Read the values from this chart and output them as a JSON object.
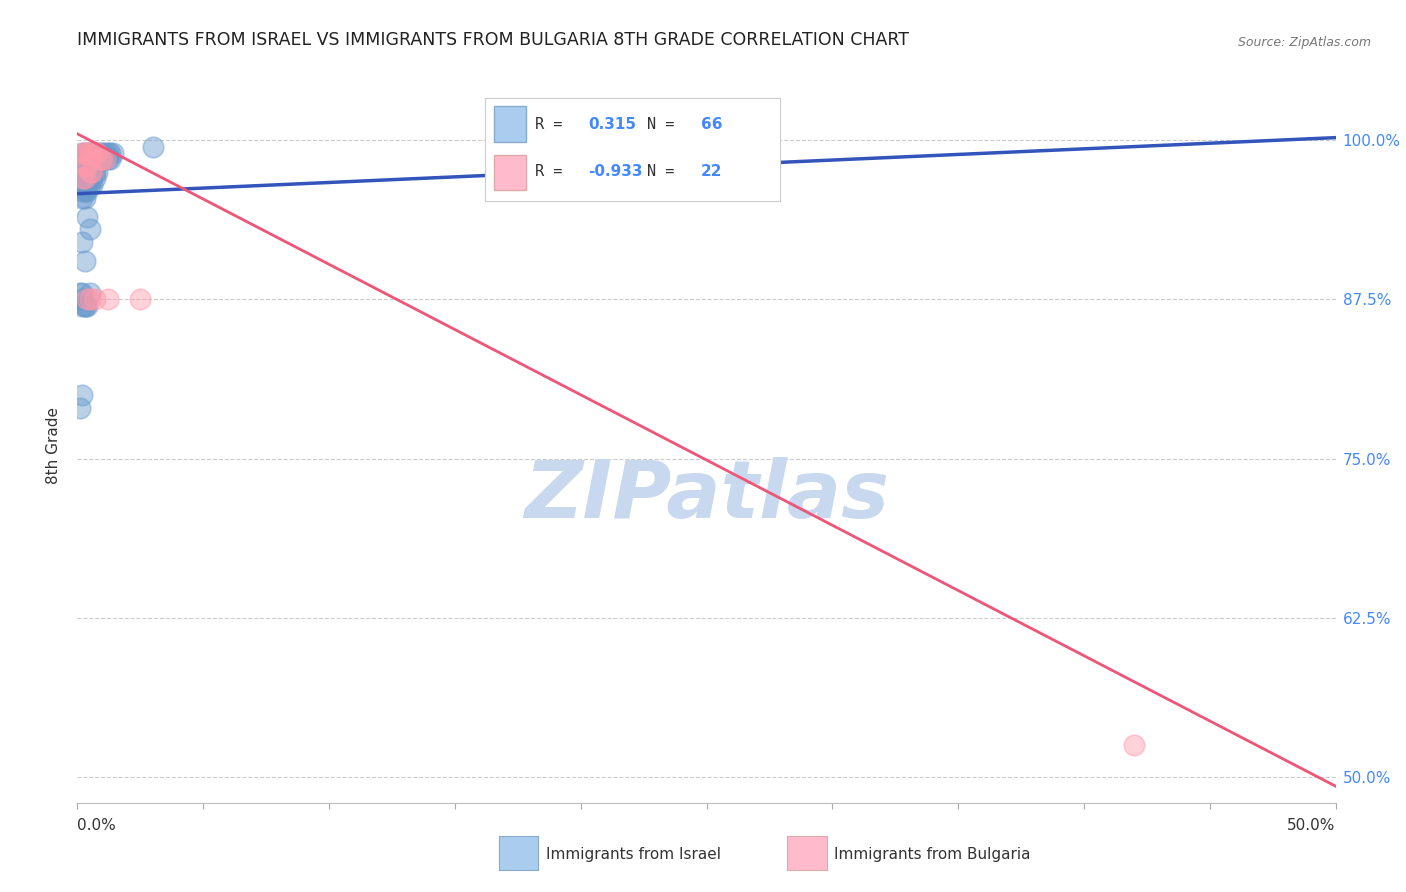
{
  "title": "IMMIGRANTS FROM ISRAEL VS IMMIGRANTS FROM BULGARIA 8TH GRADE CORRELATION CHART",
  "source": "Source: ZipAtlas.com",
  "ylabel": "8th Grade",
  "ytick_labels": [
    "100.0%",
    "87.5%",
    "75.0%",
    "62.5%",
    "50.0%"
  ],
  "ytick_values": [
    1.0,
    0.875,
    0.75,
    0.625,
    0.5
  ],
  "xmin": 0.0,
  "xmax": 0.5,
  "ymin": 0.48,
  "ymax": 1.04,
  "israel_R": "0.315",
  "israel_N": "66",
  "bulgaria_R": "-0.933",
  "bulgaria_N": "22",
  "israel_color": "#6699cc",
  "bulgaria_color": "#ff99aa",
  "israel_line_color": "#3355bb",
  "bulgaria_line_color": "#ee5577",
  "watermark_color": "#c8d8ee",
  "grid_color": "#cccccc",
  "title_color": "#222222",
  "right_axis_color": "#4488ff",
  "legend_box_israel": "#aaccee",
  "legend_box_bulgaria": "#ffbbcc",
  "israel_scatter_x": [
    0.002,
    0.003,
    0.004,
    0.005,
    0.006,
    0.007,
    0.008,
    0.009,
    0.01,
    0.011,
    0.012,
    0.013,
    0.014,
    0.003,
    0.004,
    0.005,
    0.006,
    0.007,
    0.008,
    0.009,
    0.01,
    0.011,
    0.012,
    0.013,
    0.002,
    0.003,
    0.004,
    0.005,
    0.006,
    0.007,
    0.003,
    0.004,
    0.005,
    0.006,
    0.007,
    0.008,
    0.002,
    0.003,
    0.004,
    0.005,
    0.006,
    0.007,
    0.003,
    0.004,
    0.005,
    0.006,
    0.002,
    0.003,
    0.004,
    0.002,
    0.003,
    0.004,
    0.005,
    0.002,
    0.003,
    0.001,
    0.002,
    0.003,
    0.004,
    0.005,
    0.03,
    0.002,
    0.001,
    0.002,
    0.002,
    0.003
  ],
  "israel_scatter_y": [
    0.99,
    0.99,
    0.99,
    0.99,
    0.99,
    0.99,
    0.99,
    0.99,
    0.99,
    0.99,
    0.99,
    0.99,
    0.99,
    0.985,
    0.985,
    0.985,
    0.985,
    0.985,
    0.985,
    0.985,
    0.985,
    0.985,
    0.985,
    0.985,
    0.98,
    0.98,
    0.98,
    0.98,
    0.98,
    0.98,
    0.975,
    0.975,
    0.975,
    0.975,
    0.975,
    0.975,
    0.97,
    0.97,
    0.97,
    0.97,
    0.97,
    0.97,
    0.965,
    0.965,
    0.965,
    0.965,
    0.96,
    0.96,
    0.96,
    0.955,
    0.955,
    0.94,
    0.93,
    0.92,
    0.905,
    0.88,
    0.875,
    0.87,
    0.87,
    0.88,
    0.995,
    0.88,
    0.79,
    0.8,
    0.87,
    0.87
  ],
  "bulgaria_scatter_x": [
    0.002,
    0.003,
    0.004,
    0.005,
    0.006,
    0.007,
    0.008,
    0.009,
    0.01,
    0.011,
    0.012,
    0.003,
    0.004,
    0.005,
    0.006,
    0.007,
    0.002,
    0.003,
    0.004,
    0.005,
    0.42,
    0.025
  ],
  "bulgaria_scatter_y": [
    0.99,
    0.99,
    0.99,
    0.99,
    0.99,
    0.99,
    0.99,
    0.985,
    0.985,
    0.985,
    0.875,
    0.98,
    0.98,
    0.975,
    0.975,
    0.875,
    0.97,
    0.97,
    0.875,
    0.875,
    0.525,
    0.875
  ],
  "israel_line_x": [
    0.0,
    0.5
  ],
  "israel_line_y": [
    0.958,
    1.002
  ],
  "bulgaria_line_x": [
    0.0,
    0.5
  ],
  "bulgaria_line_y": [
    1.005,
    0.493
  ]
}
